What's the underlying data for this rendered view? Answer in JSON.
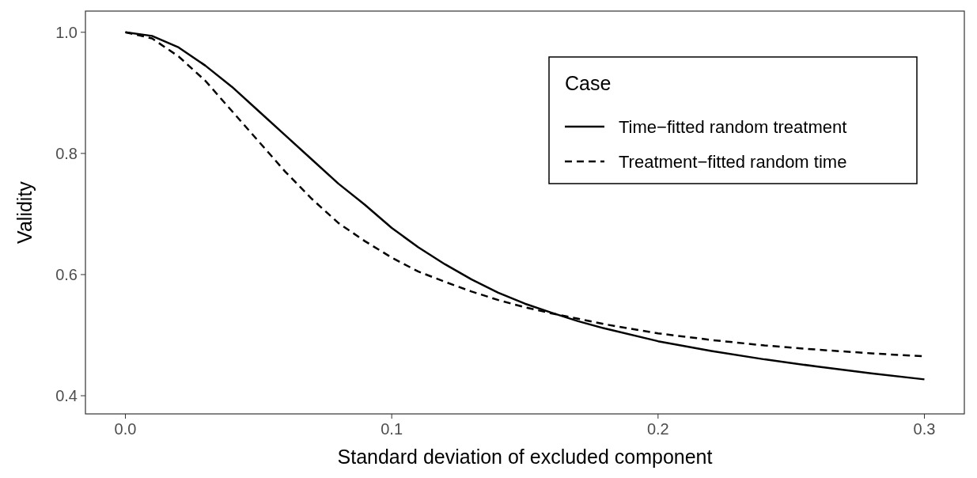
{
  "chart_data": {
    "type": "line",
    "xlabel": "Standard deviation of excluded component",
    "ylabel": "Validity",
    "legend_title": "Case",
    "legend": "top right",
    "grid": false,
    "x": [
      0,
      0.01,
      0.02,
      0.03,
      0.04,
      0.05,
      0.06,
      0.07,
      0.08,
      0.09,
      0.1,
      0.11,
      0.12,
      0.13,
      0.14,
      0.15,
      0.16,
      0.17,
      0.18,
      0.2,
      0.22,
      0.24,
      0.26,
      0.28,
      0.3
    ],
    "series": [
      {
        "name": "Time−fitted random treatment",
        "color": "#000000",
        "line_style": "solid",
        "values": [
          1.0,
          0.994,
          0.975,
          0.945,
          0.91,
          0.87,
          0.83,
          0.79,
          0.75,
          0.715,
          0.677,
          0.645,
          0.617,
          0.592,
          0.57,
          0.552,
          0.537,
          0.523,
          0.511,
          0.49,
          0.474,
          0.46,
          0.448,
          0.437,
          0.427
        ]
      },
      {
        "name": "Treatment−fitted random time",
        "color": "#000000",
        "line_style": "dashed",
        "values": [
          1.0,
          0.99,
          0.96,
          0.92,
          0.87,
          0.82,
          0.77,
          0.725,
          0.685,
          0.655,
          0.628,
          0.605,
          0.588,
          0.572,
          0.558,
          0.546,
          0.536,
          0.527,
          0.518,
          0.503,
          0.492,
          0.483,
          0.476,
          0.47,
          0.465
        ]
      }
    ],
    "xlim": [
      -0.015,
      0.315
    ],
    "xticks": [
      {
        "value": 0,
        "label": "0.0"
      },
      0.1,
      0.2,
      0.3
    ],
    "ylim": [
      0.37,
      1.035
    ],
    "yticks": [
      0.4,
      0.6,
      0.8,
      {
        "value": 1,
        "label": "1.0"
      }
    ]
  }
}
